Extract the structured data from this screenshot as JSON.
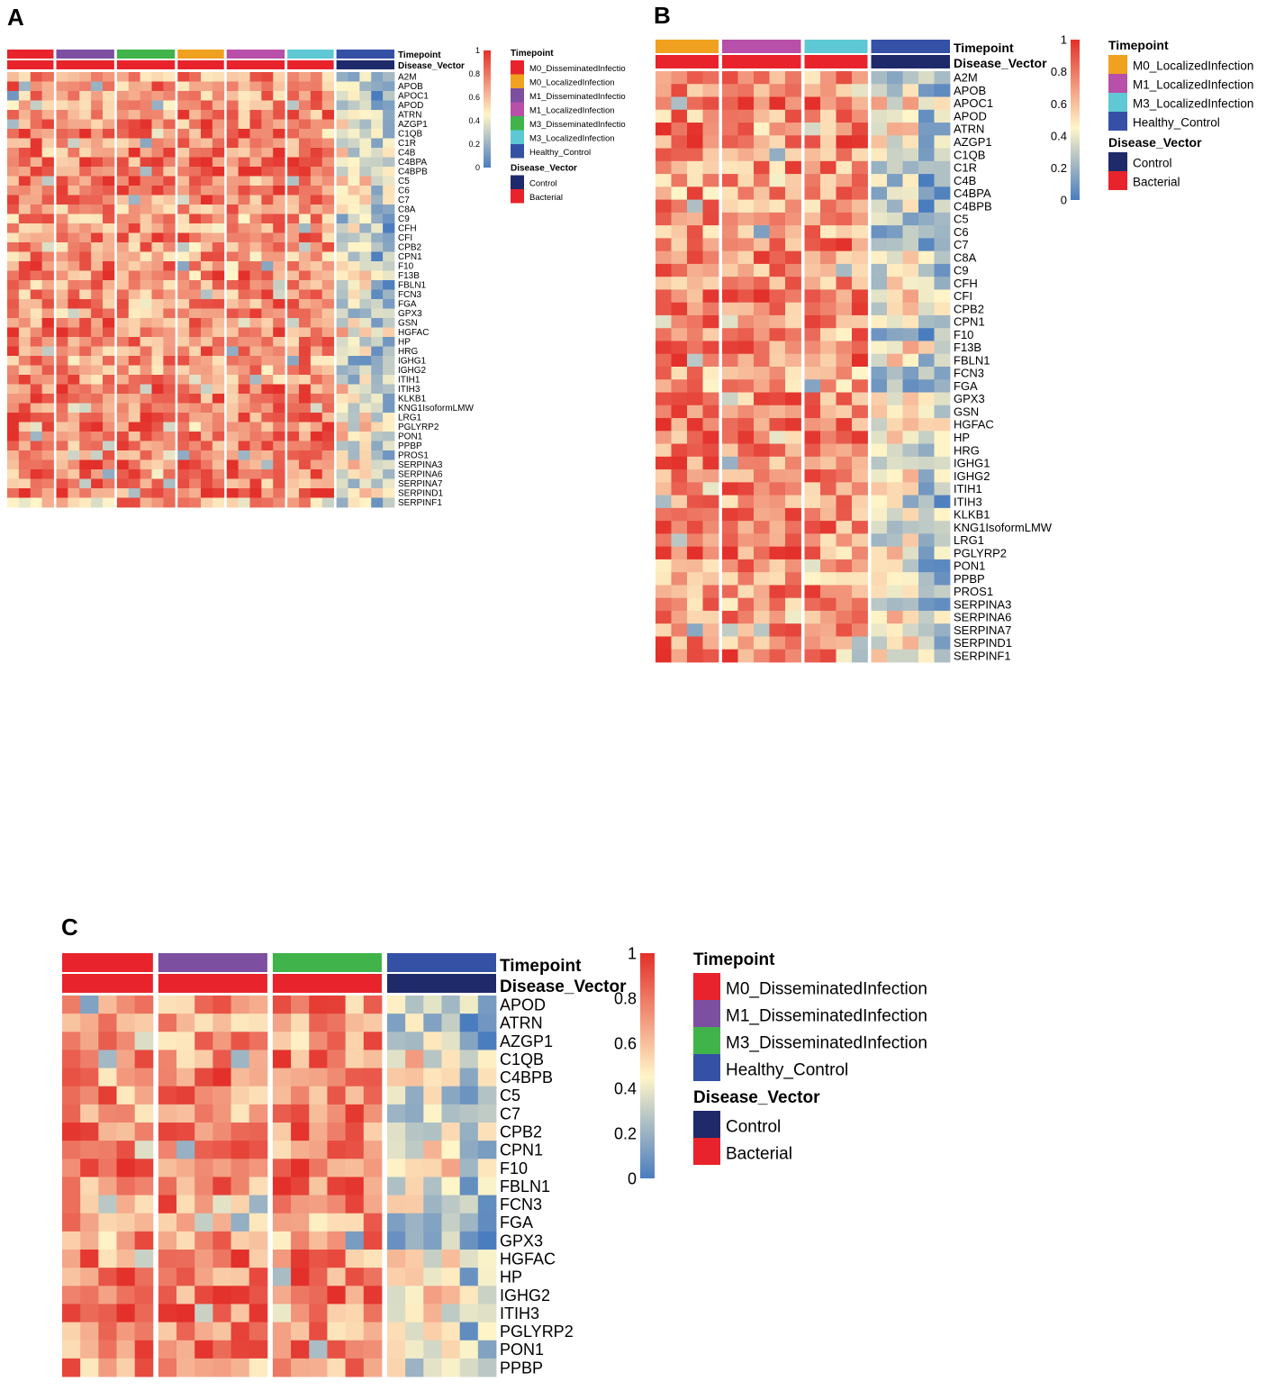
{
  "panel_labels": [
    "A",
    "B",
    "C"
  ],
  "legend": {
    "timepoint_title": "Timepoint",
    "disease_vector_title": "Disease_Vector",
    "scale_ticks": [
      "1",
      "0.8",
      "0.6",
      "0.4",
      "0.2",
      "0"
    ],
    "colors": {
      "M0_DisseminatedInfection": "#e8232c",
      "M0_LocalizedInfection": "#f0a11f",
      "M1_DisseminatedInfection": "#7d4fa0",
      "M1_LocalizedInfection": "#b84fa8",
      "M3_DisseminatedInfection": "#40b44a",
      "M3_LocalizedInfection": "#5ec8d4",
      "Healthy_Control": "#3451a6",
      "Control": "#1f2a6b",
      "Bacterial": "#e8232c"
    }
  },
  "chart_data": [
    {
      "panel": "A",
      "type": "heatmap",
      "annotation_labels": [
        "Timepoint",
        "Disease_Vector"
      ],
      "color_scale": {
        "min": 0,
        "max": 1,
        "colors": [
          "#4a7dbf",
          "#fff5c8",
          "#e3302a"
        ]
      },
      "groups": [
        {
          "timepoint": "M0_DisseminatedInfection",
          "disease_vector": "Bacterial",
          "n": 4
        },
        {
          "timepoint": "M1_DisseminatedInfection",
          "disease_vector": "Bacterial",
          "n": 5
        },
        {
          "timepoint": "M3_DisseminatedInfection",
          "disease_vector": "Bacterial",
          "n": 5
        },
        {
          "timepoint": "M0_LocalizedInfection",
          "disease_vector": "Bacterial",
          "n": 4
        },
        {
          "timepoint": "M1_LocalizedInfection",
          "disease_vector": "Bacterial",
          "n": 5
        },
        {
          "timepoint": "M3_LocalizedInfection",
          "disease_vector": "Bacterial",
          "n": 4
        },
        {
          "timepoint": "Healthy_Control",
          "disease_vector": "Control",
          "n": 5
        }
      ],
      "legend_timepoints": [
        "M0_DisseminatedInfectio",
        "M0_LocalizedInfection",
        "M1_DisseminatedInfectio",
        "M1_LocalizedInfection",
        "M3_DisseminatedInfectio",
        "M3_LocalizedInfection",
        "Healthy_Control"
      ],
      "legend_timepoint_keys": [
        "M0_DisseminatedInfection",
        "M0_LocalizedInfection",
        "M1_DisseminatedInfection",
        "M1_LocalizedInfection",
        "M3_DisseminatedInfection",
        "M3_LocalizedInfection",
        "Healthy_Control"
      ],
      "legend_disease_vectors": [
        "Control",
        "Bacterial"
      ],
      "rows": [
        "A2M",
        "APOB",
        "APOC1",
        "APOD",
        "ATRN",
        "AZGP1",
        "C1QB",
        "C1R",
        "C4B",
        "C4BPA",
        "C4BPB",
        "C5",
        "C6",
        "C7",
        "C8A",
        "C9",
        "CFH",
        "CFI",
        "CPB2",
        "CPN1",
        "F10",
        "F13B",
        "FBLN1",
        "FCN3",
        "FGA",
        "GPX3",
        "GSN",
        "HGFAC",
        "HP",
        "HRG",
        "IGHG1",
        "IGHG2",
        "ITIH1",
        "ITIH3",
        "KLKB1",
        "KNG1IsoformLMW",
        "LRG1",
        "PGLYRP2",
        "PON1",
        "PPBP",
        "PROS1",
        "SERPINA3",
        "SERPINA6",
        "SERPINA7",
        "SERPIND1",
        "SERPINF1"
      ],
      "seed": 11
    },
    {
      "panel": "B",
      "type": "heatmap",
      "annotation_labels": [
        "Timepoint",
        "Disease_Vector"
      ],
      "color_scale": {
        "min": 0,
        "max": 1,
        "colors": [
          "#4a7dbf",
          "#fff5c8",
          "#e3302a"
        ]
      },
      "groups": [
        {
          "timepoint": "M0_LocalizedInfection",
          "disease_vector": "Bacterial",
          "n": 4
        },
        {
          "timepoint": "M1_LocalizedInfection",
          "disease_vector": "Bacterial",
          "n": 5
        },
        {
          "timepoint": "M3_LocalizedInfection",
          "disease_vector": "Bacterial",
          "n": 4
        },
        {
          "timepoint": "Healthy_Control",
          "disease_vector": "Control",
          "n": 5
        }
      ],
      "legend_timepoints": [
        "M0_LocalizedInfection",
        "M1_LocalizedInfection",
        "M3_LocalizedInfection",
        "Healthy_Control"
      ],
      "legend_timepoint_keys": [
        "M0_LocalizedInfection",
        "M1_LocalizedInfection",
        "M3_LocalizedInfection",
        "Healthy_Control"
      ],
      "legend_disease_vectors": [
        "Control",
        "Bacterial"
      ],
      "rows": [
        "A2M",
        "APOB",
        "APOC1",
        "APOD",
        "ATRN",
        "AZGP1",
        "C1QB",
        "C1R",
        "C4B",
        "C4BPA",
        "C4BPB",
        "C5",
        "C6",
        "C7",
        "C8A",
        "C9",
        "CFH",
        "CFI",
        "CPB2",
        "CPN1",
        "F10",
        "F13B",
        "FBLN1",
        "FCN3",
        "FGA",
        "GPX3",
        "GSN",
        "HGFAC",
        "HP",
        "HRG",
        "IGHG1",
        "IGHG2",
        "ITIH1",
        "ITIH3",
        "KLKB1",
        "KNG1IsoformLMW",
        "LRG1",
        "PGLYRP2",
        "PON1",
        "PPBP",
        "PROS1",
        "SERPINA3",
        "SERPINA6",
        "SERPINA7",
        "SERPIND1",
        "SERPINF1"
      ],
      "seed": 23
    },
    {
      "panel": "C",
      "type": "heatmap",
      "annotation_labels": [
        "Timepoint",
        "Disease_Vector"
      ],
      "color_scale": {
        "min": 0,
        "max": 1,
        "colors": [
          "#4a7dbf",
          "#fff5c8",
          "#e3302a"
        ]
      },
      "groups": [
        {
          "timepoint": "M0_DisseminatedInfection",
          "disease_vector": "Bacterial",
          "n": 5
        },
        {
          "timepoint": "M1_DisseminatedInfection",
          "disease_vector": "Bacterial",
          "n": 6
        },
        {
          "timepoint": "M3_DisseminatedInfection",
          "disease_vector": "Bacterial",
          "n": 6
        },
        {
          "timepoint": "Healthy_Control",
          "disease_vector": "Control",
          "n": 6
        }
      ],
      "legend_timepoints": [
        "M0_DisseminatedInfection",
        "M1_DisseminatedInfection",
        "M3_DisseminatedInfection",
        "Healthy_Control"
      ],
      "legend_timepoint_keys": [
        "M0_DisseminatedInfection",
        "M1_DisseminatedInfection",
        "M3_DisseminatedInfection",
        "Healthy_Control"
      ],
      "legend_disease_vectors": [
        "Control",
        "Bacterial"
      ],
      "rows": [
        "APOD",
        "ATRN",
        "AZGP1",
        "C1QB",
        "C4BPB",
        "C5",
        "C7",
        "CPB2",
        "CPN1",
        "F10",
        "FBLN1",
        "FCN3",
        "FGA",
        "GPX3",
        "HGFAC",
        "HP",
        "IGHG2",
        "ITIH3",
        "PGLYRP2",
        "PON1",
        "PPBP"
      ],
      "seed": 37
    }
  ]
}
